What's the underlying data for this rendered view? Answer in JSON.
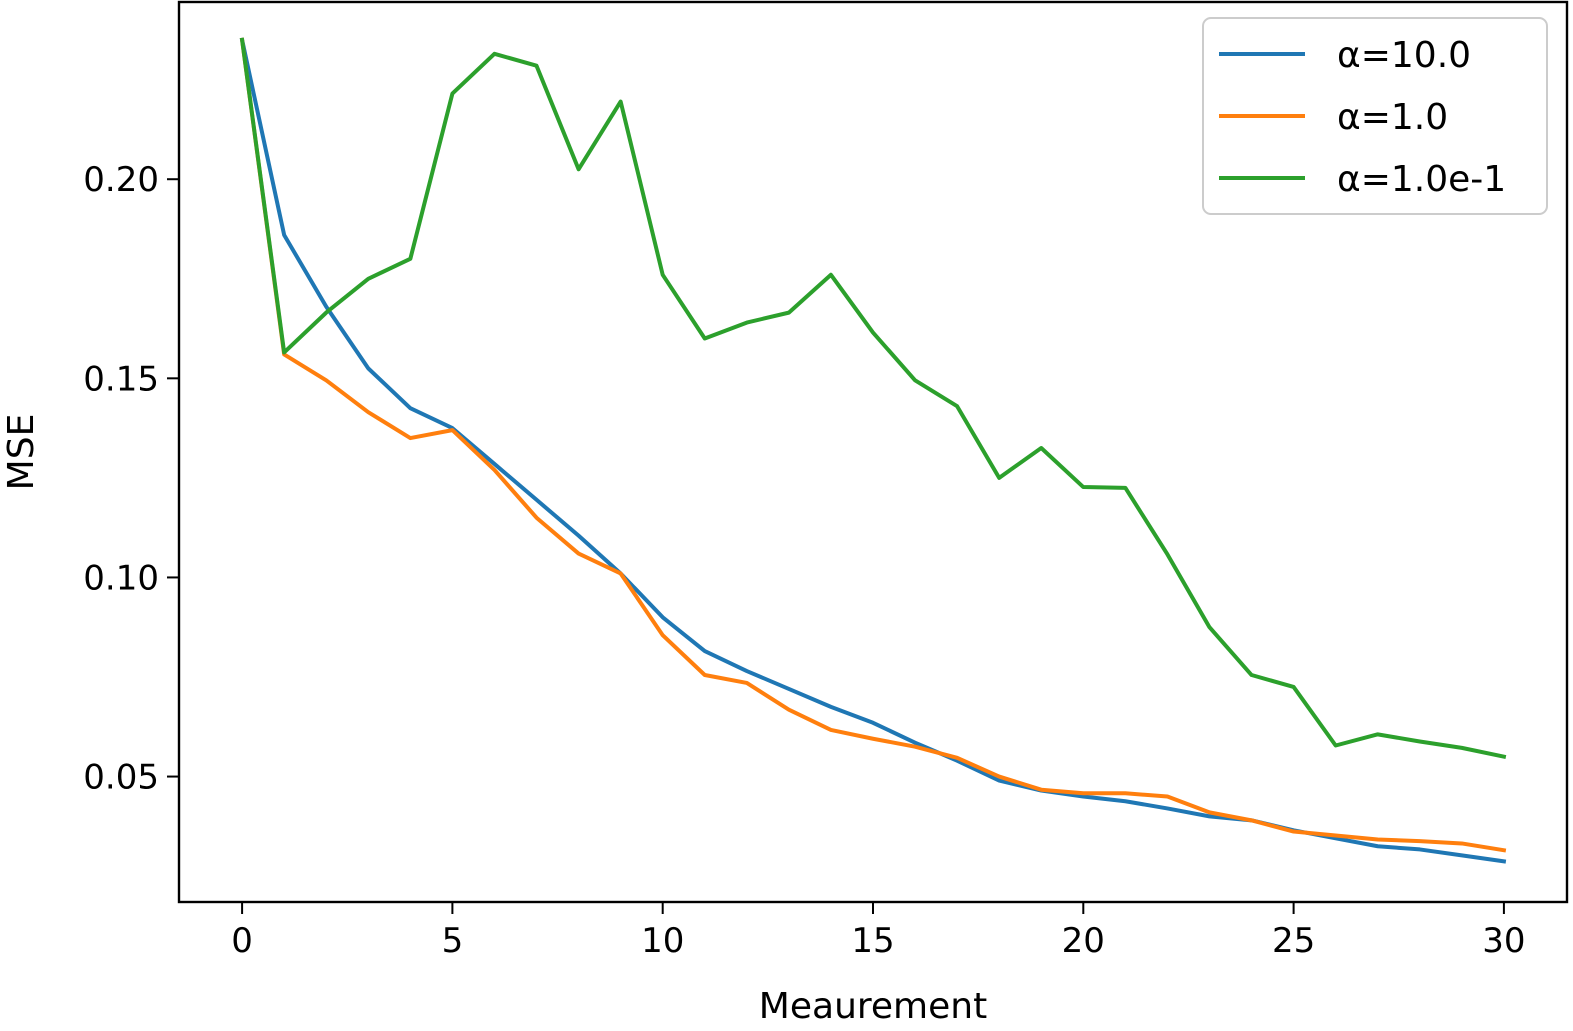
{
  "chart_data": {
    "type": "line",
    "title": "",
    "xlabel": "Meaurement",
    "ylabel": "MSE",
    "xlim": [
      -1.5,
      31.5
    ],
    "ylim": [
      0.0185,
      0.2445
    ],
    "xticks": [
      0,
      5,
      10,
      15,
      20,
      25,
      30
    ],
    "xtick_labels": [
      "0",
      "5",
      "10",
      "15",
      "20",
      "25",
      "30"
    ],
    "yticks": [
      0.05,
      0.1,
      0.15,
      0.2
    ],
    "ytick_labels": [
      "0.05",
      "0.10",
      "0.15",
      "0.20"
    ],
    "grid": false,
    "legend_position": "top-right",
    "x": [
      0,
      1,
      2,
      3,
      4,
      5,
      6,
      7,
      8,
      9,
      10,
      11,
      12,
      13,
      14,
      15,
      16,
      17,
      18,
      19,
      20,
      21,
      22,
      23,
      24,
      25,
      26,
      27,
      28,
      29,
      30
    ],
    "series": [
      {
        "name": "α=10.0",
        "color": "#1f77b4",
        "values": [
          0.235,
          0.186,
          0.168,
          0.1525,
          0.1425,
          0.1375,
          0.1285,
          0.1195,
          0.1105,
          0.101,
          0.09,
          0.0815,
          0.0765,
          0.072,
          0.0675,
          0.0635,
          0.0585,
          0.054,
          0.049,
          0.0465,
          0.045,
          0.0438,
          0.042,
          0.04,
          0.039,
          0.0365,
          0.0345,
          0.0325,
          0.0317,
          0.0302,
          0.0287
        ]
      },
      {
        "name": "α=1.0",
        "color": "#ff7f0e",
        "values": [
          0.235,
          0.156,
          0.1495,
          0.1415,
          0.135,
          0.137,
          0.127,
          0.115,
          0.106,
          0.101,
          0.0855,
          0.0755,
          0.0735,
          0.0668,
          0.0617,
          0.0595,
          0.0575,
          0.0547,
          0.05,
          0.0467,
          0.0458,
          0.0458,
          0.045,
          0.041,
          0.039,
          0.0362,
          0.0352,
          0.0342,
          0.0338,
          0.0332,
          0.0315
        ]
      },
      {
        "name": "α=1.0e-1",
        "color": "#2ca02c",
        "values": [
          0.235,
          0.1565,
          0.1665,
          0.175,
          0.18,
          0.2215,
          0.2315,
          0.2285,
          0.2025,
          0.2195,
          0.176,
          0.16,
          0.164,
          0.1665,
          0.176,
          0.1615,
          0.1495,
          0.143,
          0.125,
          0.1325,
          0.1227,
          0.1225,
          0.1058,
          0.0875,
          0.0755,
          0.0725,
          0.0578,
          0.0606,
          0.0588,
          0.0572,
          0.055
        ]
      }
    ]
  }
}
